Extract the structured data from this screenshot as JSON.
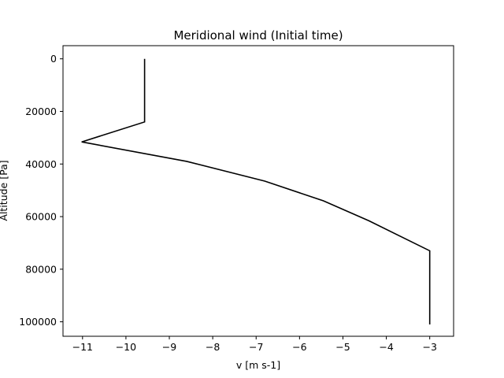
{
  "chart_data": {
    "type": "line",
    "title": "Meridional wind (Initial time)",
    "xlabel": "v [m s-1]",
    "ylabel": "Altitude [Pa]",
    "xlim": [
      -11.45,
      -2.45
    ],
    "ylim": [
      105500,
      -5000
    ],
    "y_inverted": true,
    "xticks": [
      -11,
      -10,
      -9,
      -8,
      -7,
      -6,
      -5,
      -4,
      -3
    ],
    "xtick_labels": [
      "−11",
      "−10",
      "−9",
      "−8",
      "−7",
      "−6",
      "−5",
      "−4",
      "−3"
    ],
    "yticks": [
      0,
      20000,
      40000,
      60000,
      80000,
      100000
    ],
    "ytick_labels": [
      "0",
      "20000",
      "40000",
      "60000",
      "80000",
      "100000"
    ],
    "grid": false,
    "series": [
      {
        "color": "#000000",
        "points": [
          {
            "x": -9.57,
            "y": 0
          },
          {
            "x": -9.57,
            "y": 24000
          },
          {
            "x": -11.02,
            "y": 31600
          },
          {
            "x": -8.6,
            "y": 39000
          },
          {
            "x": -6.8,
            "y": 46500
          },
          {
            "x": -5.45,
            "y": 54000
          },
          {
            "x": -4.4,
            "y": 61600
          },
          {
            "x": -3.0,
            "y": 73000
          },
          {
            "x": -3.0,
            "y": 101000
          }
        ]
      }
    ]
  }
}
